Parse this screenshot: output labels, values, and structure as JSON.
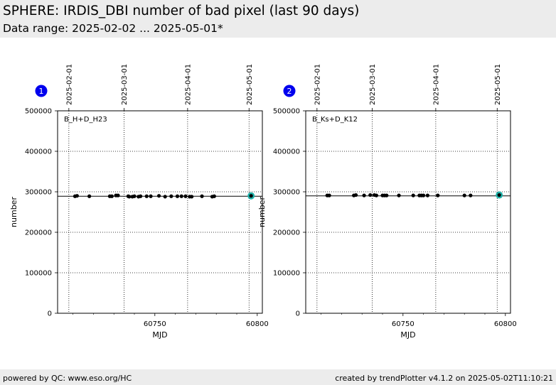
{
  "header": {
    "title": "SPHERE: IRDIS_DBI number of bad pixel (last 90 days)",
    "subtitle": "Data range: 2025-02-02 ... 2025-05-01*"
  },
  "footer": {
    "left": "powered by QC: www.eso.org/HC",
    "right": "created by trendPlotter v4.1.2 on 2025-05-02T11:10:21"
  },
  "colors": {
    "points": "#000000",
    "latest_point": "#20b2aa",
    "badge": "#0000ee"
  },
  "chart_data": [
    {
      "type": "scatter",
      "badge": "1",
      "label": "B_H+D_H23",
      "xlabel": "MJD",
      "ylabel": "number",
      "xlim": [
        60702.5,
        60802.5
      ],
      "ylim": [
        0,
        500000
      ],
      "xticks": [
        60750,
        60800
      ],
      "yticks": [
        0,
        100000,
        200000,
        300000,
        400000,
        500000
      ],
      "date_ticks": [
        {
          "mjd": 60708,
          "label": "2025-02-01"
        },
        {
          "mjd": 60735,
          "label": "2025-03-01"
        },
        {
          "mjd": 60766,
          "label": "2025-04-01"
        },
        {
          "mjd": 60796,
          "label": "2025-05-01"
        }
      ],
      "reference": 289000,
      "x": [
        60711,
        60712,
        60718,
        60728,
        60729,
        60731,
        60732,
        60737,
        60737.5,
        60739,
        60740,
        60742,
        60743,
        60746,
        60748,
        60752,
        60755,
        60758,
        60761,
        60763,
        60765,
        60767,
        60768,
        60773,
        60778,
        60779
      ],
      "y": [
        289000,
        290000,
        289000,
        289000,
        289000,
        291000,
        291000,
        289000,
        288000,
        288000,
        289000,
        288000,
        289000,
        289000,
        289000,
        290000,
        288000,
        289000,
        289000,
        289000,
        289000,
        288000,
        288000,
        289000,
        288000,
        289000
      ],
      "latest": {
        "x": 60797,
        "y": 290000
      }
    },
    {
      "type": "scatter",
      "badge": "2",
      "label": "B_Ks+D_K12",
      "xlabel": "MJD",
      "ylabel": "number",
      "xlim": [
        60702.5,
        60802.5
      ],
      "ylim": [
        0,
        500000
      ],
      "xticks": [
        60750,
        60800
      ],
      "yticks": [
        0,
        100000,
        200000,
        300000,
        400000,
        500000
      ],
      "date_ticks": [
        {
          "mjd": 60708,
          "label": "2025-02-01"
        },
        {
          "mjd": 60735,
          "label": "2025-03-01"
        },
        {
          "mjd": 60766,
          "label": "2025-04-01"
        },
        {
          "mjd": 60796,
          "label": "2025-05-01"
        }
      ],
      "reference": 290000,
      "x": [
        60713,
        60714,
        60726,
        60727,
        60731,
        60734,
        60736,
        60737,
        60740,
        60741,
        60742,
        60748,
        60755,
        60758,
        60759,
        60760,
        60762,
        60767,
        60780,
        60783
      ],
      "y": [
        291000,
        291000,
        291000,
        292000,
        291000,
        292000,
        292000,
        291000,
        291000,
        291000,
        291000,
        291000,
        291000,
        291000,
        291000,
        291000,
        291000,
        291000,
        291000,
        291000
      ],
      "latest": {
        "x": 60797,
        "y": 292000
      }
    }
  ]
}
